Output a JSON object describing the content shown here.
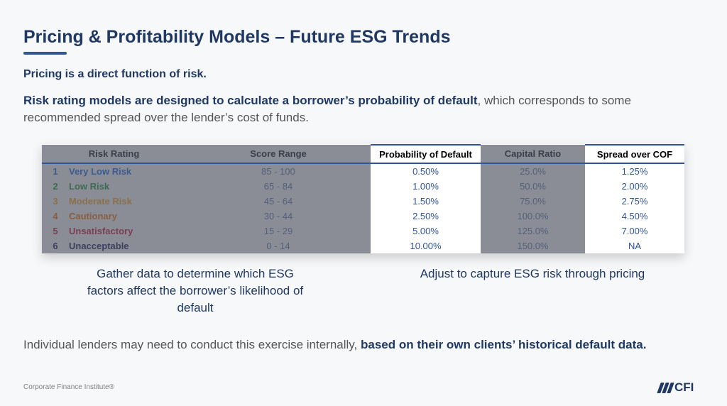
{
  "title": "Pricing & Profitability Models – Future ESG Trends",
  "subhead": "Pricing is a direct function of risk.",
  "paragraph": {
    "bold": "Risk rating models are designed to calculate a borrower’s probability of default",
    "rest": ", which corresponds to some recommended spread over the lender’s cost of funds."
  },
  "table": {
    "headers": {
      "risk_rating": "Risk Rating",
      "score_range": "Score Range",
      "pd": "Probability of Default",
      "capital": "Capital Ratio",
      "spread": "Spread over COF"
    },
    "rows": [
      {
        "num": "1",
        "name": "Very Low Risk",
        "score": "85 -  100",
        "pd": "0.50%",
        "capital": "25.0%",
        "spread": "1.25%",
        "color": "#3a5c91"
      },
      {
        "num": "2",
        "name": "Low Risk",
        "score": "65 -  84",
        "pd": "1.00%",
        "capital": "50.0%",
        "spread": "2.00%",
        "color": "#3d6b52"
      },
      {
        "num": "3",
        "name": "Moderate Risk",
        "score": "45 -  64",
        "pd": "1.50%",
        "capital": "75.0%",
        "spread": "2.75%",
        "color": "#8a7048"
      },
      {
        "num": "4",
        "name": "Cautionary",
        "score": "30 -  44",
        "pd": "2.50%",
        "capital": "100.0%",
        "spread": "4.50%",
        "color": "#8c5c3e"
      },
      {
        "num": "5",
        "name": "Unsatisfactory",
        "score": "15 -  29",
        "pd": "5.00%",
        "capital": "125.0%",
        "spread": "7.00%",
        "color": "#7a3f54"
      },
      {
        "num": "6",
        "name": "Unacceptable",
        "score": "0 -  14",
        "pd": "10.00%",
        "capital": "150.0%",
        "spread": "NA",
        "color": "#3f3f5e"
      }
    ]
  },
  "captions": {
    "left": "Gather data to determine which ESG factors affect the borrower’s likelihood of default",
    "right": "Adjust to capture ESG risk through pricing"
  },
  "bottom": {
    "plain": "Individual lenders may need to conduct this exercise internally, ",
    "bold": "based on their own clients’ historical default data."
  },
  "footer": "Corporate Finance Institute®",
  "logo_text": "CFI",
  "colors": {
    "accent": "#2f5597",
    "navy": "#1f3864",
    "shade": "#8a8d96"
  }
}
